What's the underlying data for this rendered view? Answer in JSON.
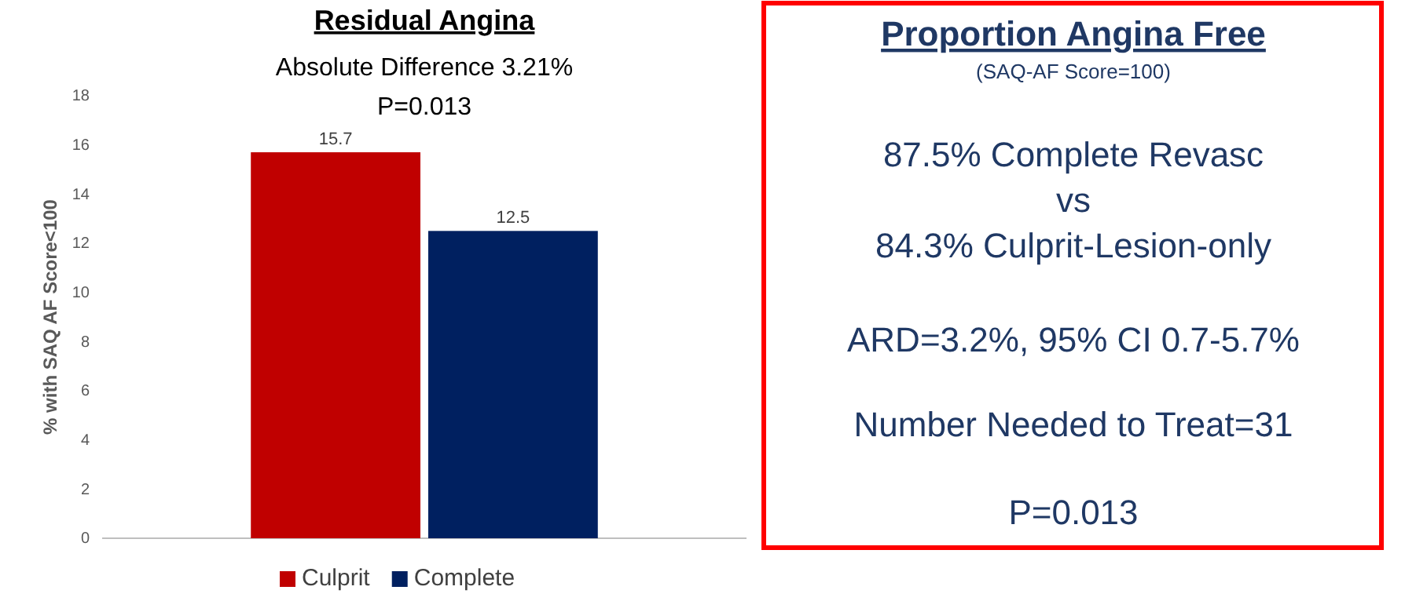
{
  "chart_data": [
    {
      "type": "bar",
      "title": "Residual Angina",
      "subtitle": "Absolute Difference 3.21%",
      "annotations": [
        "P=0.013"
      ],
      "ylabel": "% with SAQ AF Score<100",
      "categories": [
        null
      ],
      "series": [
        {
          "name": "Culprit",
          "color": "#c00000",
          "values": [
            15.7
          ]
        },
        {
          "name": "Complete",
          "color": "#002060",
          "values": [
            12.5
          ]
        }
      ],
      "ylim": [
        0,
        18
      ],
      "yticks": [
        0,
        2,
        4,
        6,
        8,
        10,
        12,
        14,
        16,
        18
      ],
      "data_labels": true,
      "legend": "bottom"
    },
    {
      "type": "other",
      "title": "Proportion Angina Free",
      "subtitle": "(SAQ-AF Score=100)",
      "annotations": [
        "87.5% Complete Revasc",
        "vs",
        "84.3% Culprit-Lesion-only",
        "ARD=3.2%, 95% CI 0.7-5.7%",
        "Number Needed to Treat=31",
        "P=0.013"
      ]
    }
  ]
}
